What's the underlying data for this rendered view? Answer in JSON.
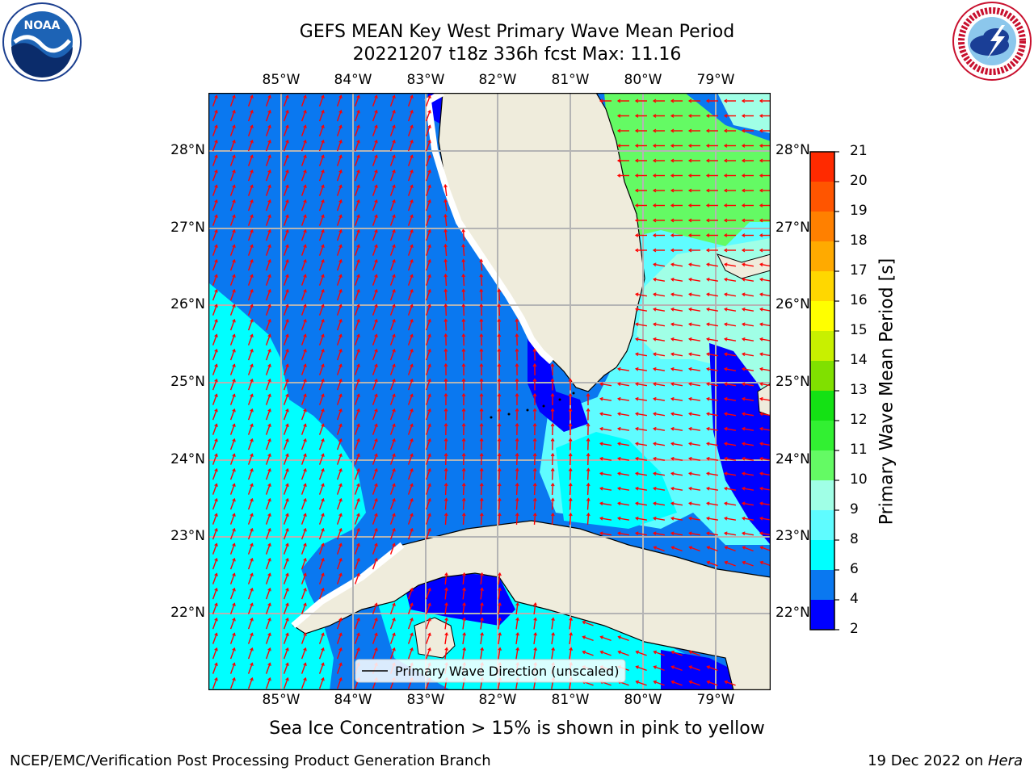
{
  "title": {
    "line1": "GEFS MEAN Key West Primary Wave Mean Period",
    "line2": "20221207 t18z 336h fcst   Max: 11.16"
  },
  "map": {
    "lon_labels": [
      "85°W",
      "84°W",
      "83°W",
      "82°W",
      "81°W",
      "80°W",
      "79°W"
    ],
    "lat_labels": [
      "28°N",
      "27°N",
      "26°N",
      "25°N",
      "24°N",
      "23°N",
      "22°N"
    ],
    "legend_label": "Primary Wave Direction (unscaled)",
    "arrow_color": "#ff0000",
    "land_color": "#efecdc"
  },
  "colorbar": {
    "title": "Primary Wave Mean Period [s]",
    "ticks": [
      "2",
      "4",
      "6",
      "8",
      "9",
      "10",
      "11",
      "12",
      "13",
      "14",
      "15",
      "16",
      "17",
      "18",
      "19",
      "20",
      "21"
    ],
    "colors": [
      "#0000ff",
      "#0a78f0",
      "#00ffff",
      "#5ffcff",
      "#a0ffe6",
      "#64fa64",
      "#32f032",
      "#14e114",
      "#80e000",
      "#c8f000",
      "#ffff00",
      "#ffd700",
      "#ffaa00",
      "#ff8000",
      "#ff5500",
      "#ff2a00"
    ]
  },
  "logos": {
    "noaa_text": "NOAA",
    "nws_text": "NATIONAL WEATHER SERVICE"
  },
  "notes": {
    "sea_ice": "Sea Ice Concentration > 15% is shown in pink to yellow"
  },
  "footer": {
    "left": "NCEP/EMC/Verification Post Processing Product Generation Branch",
    "date": "19 Dec 2022 on ",
    "host": "Hera"
  }
}
